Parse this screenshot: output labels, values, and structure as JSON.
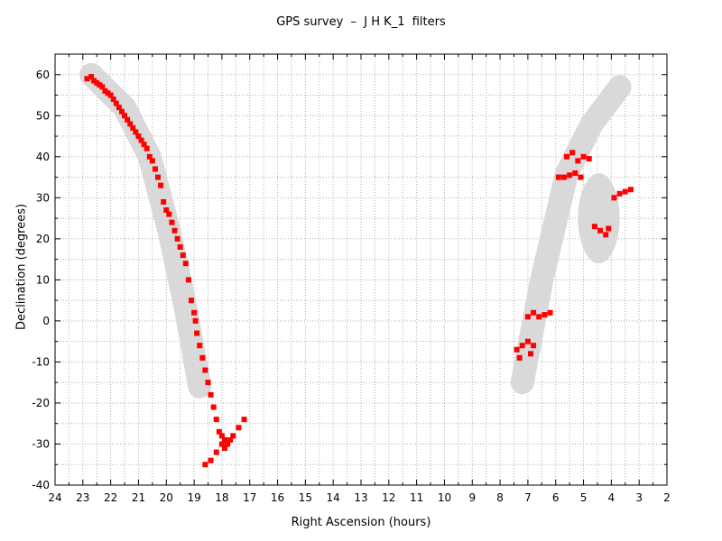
{
  "chart_data": {
    "type": "scatter",
    "title": "GPS survey  –  J H K_1  filters",
    "xlabel": "Right Ascension (hours)",
    "ylabel": "Declination (degrees)",
    "xlim": [
      24,
      2
    ],
    "ylim": [
      -40,
      65
    ],
    "x_ticks": [
      24,
      23,
      22,
      21,
      20,
      19,
      18,
      17,
      16,
      15,
      14,
      13,
      12,
      11,
      10,
      9,
      8,
      7,
      6,
      5,
      4,
      3,
      2
    ],
    "y_ticks": [
      -40,
      -30,
      -20,
      -10,
      0,
      10,
      20,
      30,
      40,
      50,
      60
    ],
    "x_minor_step": 0.5,
    "y_minor_step": 5,
    "grid": true,
    "colors": {
      "observed": "#ff0000",
      "plane_band": "#d9d9d9",
      "axis": "#000000",
      "grid": "#b0b0b0"
    },
    "galactic_plane_band": [
      {
        "x": 22.7,
        "y": 60
      },
      {
        "x": 21.5,
        "y": 52
      },
      {
        "x": 20.6,
        "y": 40
      },
      {
        "x": 19.9,
        "y": 22
      },
      {
        "x": 19.3,
        "y": 3
      },
      {
        "x": 18.8,
        "y": -16
      },
      {
        "x": 7.2,
        "y": -15
      },
      {
        "x": 6.5,
        "y": 10
      },
      {
        "x": 5.6,
        "y": 36
      },
      {
        "x": 4.7,
        "y": 48
      },
      {
        "x": 3.7,
        "y": 57
      }
    ],
    "band_blob": {
      "x": 4.45,
      "y": 25,
      "rx_hours": 0.75,
      "ry_deg": 11
    },
    "series": [
      {
        "points": [
          [
            22.85,
            59
          ],
          [
            22.7,
            59.5
          ],
          [
            22.6,
            58.5
          ],
          [
            22.5,
            58
          ],
          [
            22.4,
            57.5
          ],
          [
            22.3,
            57
          ],
          [
            22.2,
            56
          ],
          [
            22.1,
            55.5
          ],
          [
            22.0,
            55
          ],
          [
            21.9,
            54
          ],
          [
            21.8,
            53
          ],
          [
            21.7,
            52
          ],
          [
            21.6,
            51
          ],
          [
            21.5,
            50
          ],
          [
            21.4,
            49
          ],
          [
            21.3,
            48
          ],
          [
            21.2,
            47
          ],
          [
            21.1,
            46
          ],
          [
            21.0,
            45
          ],
          [
            20.9,
            44
          ],
          [
            20.8,
            43
          ],
          [
            20.7,
            42
          ],
          [
            20.6,
            40
          ],
          [
            20.5,
            39
          ],
          [
            20.4,
            37
          ],
          [
            20.3,
            35
          ],
          [
            20.2,
            33
          ],
          [
            20.1,
            29
          ],
          [
            20.0,
            27
          ],
          [
            19.9,
            26
          ],
          [
            19.8,
            24
          ],
          [
            19.7,
            22
          ],
          [
            19.6,
            20
          ],
          [
            19.5,
            18
          ],
          [
            19.4,
            16
          ],
          [
            19.3,
            14
          ],
          [
            19.2,
            10
          ],
          [
            19.1,
            5
          ],
          [
            19.0,
            2
          ],
          [
            18.95,
            0
          ],
          [
            18.9,
            -3
          ],
          [
            18.8,
            -6
          ],
          [
            18.7,
            -9
          ],
          [
            18.6,
            -12
          ],
          [
            18.5,
            -15
          ],
          [
            18.4,
            -18
          ],
          [
            18.3,
            -21
          ],
          [
            18.2,
            -24
          ],
          [
            18.1,
            -27
          ],
          [
            18.0,
            -28
          ],
          [
            17.9,
            -29
          ],
          [
            17.8,
            -30
          ],
          [
            17.7,
            -29
          ],
          [
            17.6,
            -28
          ],
          [
            17.4,
            -26
          ],
          [
            17.2,
            -24
          ],
          [
            17.9,
            -31
          ],
          [
            18.0,
            -30
          ],
          [
            18.2,
            -32
          ],
          [
            18.4,
            -34
          ],
          [
            18.6,
            -35
          ],
          [
            7.4,
            -7
          ],
          [
            7.2,
            -6
          ],
          [
            7.0,
            -5
          ],
          [
            6.9,
            -8
          ],
          [
            7.3,
            -9
          ],
          [
            6.8,
            -6
          ],
          [
            7.0,
            1
          ],
          [
            6.8,
            2
          ],
          [
            6.6,
            1
          ],
          [
            6.4,
            1.5
          ],
          [
            6.2,
            2
          ],
          [
            5.9,
            35
          ],
          [
            5.7,
            35
          ],
          [
            5.5,
            35.5
          ],
          [
            5.3,
            36
          ],
          [
            5.1,
            35
          ],
          [
            5.6,
            40
          ],
          [
            5.4,
            41
          ],
          [
            5.2,
            39
          ],
          [
            5.0,
            40
          ],
          [
            4.8,
            39.5
          ],
          [
            4.6,
            23
          ],
          [
            4.4,
            22
          ],
          [
            4.2,
            21
          ],
          [
            4.1,
            22.5
          ],
          [
            3.9,
            30
          ],
          [
            3.7,
            31
          ],
          [
            3.5,
            31.5
          ],
          [
            3.3,
            32
          ]
        ]
      }
    ]
  }
}
